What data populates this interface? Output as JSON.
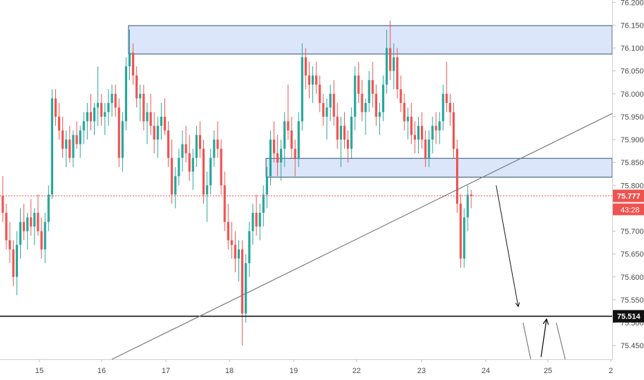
{
  "chart_data": {
    "type": "candlestick",
    "xlabels": [
      "15",
      "16",
      "17",
      "18",
      "19",
      "22",
      "23",
      "24",
      "25",
      "2"
    ],
    "yticks": [
      "76.200",
      "76.150",
      "76.100",
      "76.050",
      "76.000",
      "75.950",
      "75.900",
      "75.850",
      "75.800",
      "75.750",
      "75.700",
      "75.650",
      "75.600",
      "75.550",
      "75.500",
      "75.450"
    ],
    "ylim": [
      75.42,
      76.205
    ],
    "last_price": "75.777",
    "countdown": "43:28",
    "support_level": "75.514",
    "zones": [
      {
        "low": 76.087,
        "high": 76.149
      },
      {
        "low": 75.818,
        "high": 75.859
      }
    ],
    "trendline": {
      "from": [
        "16",
        75.42
      ],
      "to": [
        "26",
        75.957
      ]
    },
    "support_line_value": 75.514,
    "projection_arrows": [
      {
        "from": [
          "24",
          75.8
        ],
        "to": [
          "24.5",
          75.535
        ]
      },
      {
        "from": [
          "24.9",
          75.425
        ],
        "to": [
          "25",
          75.508
        ]
      }
    ],
    "candles": [
      [
        75.777,
        75.82,
        75.72,
        75.74
      ],
      [
        75.74,
        75.76,
        75.66,
        75.68
      ],
      [
        75.68,
        75.72,
        75.63,
        75.66
      ],
      [
        75.66,
        75.68,
        75.58,
        75.6
      ],
      [
        75.6,
        75.7,
        75.56,
        75.67
      ],
      [
        75.67,
        75.75,
        75.64,
        75.72
      ],
      [
        75.72,
        75.76,
        75.68,
        75.7
      ],
      [
        75.7,
        75.74,
        75.66,
        75.73
      ],
      [
        75.73,
        75.77,
        75.69,
        75.71
      ],
      [
        75.71,
        75.75,
        75.67,
        75.74
      ],
      [
        75.74,
        75.78,
        75.69,
        75.7
      ],
      [
        75.7,
        75.73,
        75.64,
        75.66
      ],
      [
        75.66,
        75.74,
        75.63,
        75.72
      ],
      [
        75.72,
        75.8,
        75.7,
        75.78
      ],
      [
        75.78,
        76.01,
        75.77,
        75.99
      ],
      [
        75.99,
        76.01,
        75.93,
        75.95
      ],
      [
        75.95,
        75.98,
        75.9,
        75.92
      ],
      [
        75.92,
        75.95,
        75.86,
        75.88
      ],
      [
        75.88,
        75.92,
        75.84,
        75.9
      ],
      [
        75.9,
        75.93,
        75.85,
        75.86
      ],
      [
        75.86,
        75.92,
        75.84,
        75.91
      ],
      [
        75.91,
        75.94,
        75.88,
        75.89
      ],
      [
        75.89,
        75.93,
        75.86,
        75.92
      ],
      [
        75.92,
        75.96,
        75.89,
        75.94
      ],
      [
        75.94,
        75.98,
        75.9,
        75.96
      ],
      [
        75.96,
        76.0,
        75.92,
        75.94
      ],
      [
        75.94,
        75.98,
        75.91,
        75.97
      ],
      [
        75.97,
        76.06,
        75.93,
        75.98
      ],
      [
        75.98,
        76.0,
        75.93,
        75.95
      ],
      [
        75.95,
        75.98,
        75.91,
        75.96
      ],
      [
        75.96,
        76.01,
        75.93,
        75.98
      ],
      [
        75.98,
        76.02,
        75.95,
        76.0
      ],
      [
        76.0,
        76.02,
        75.95,
        75.97
      ],
      [
        75.97,
        75.99,
        75.84,
        75.86
      ],
      [
        75.86,
        75.96,
        75.83,
        75.94
      ],
      [
        75.94,
        76.08,
        75.92,
        76.06
      ],
      [
        76.06,
        76.14,
        76.03,
        76.09
      ],
      [
        76.09,
        76.11,
        76.02,
        76.04
      ],
      [
        76.04,
        76.06,
        75.97,
        75.99
      ],
      [
        75.99,
        76.02,
        75.94,
        76.0
      ],
      [
        76.0,
        76.02,
        75.92,
        75.94
      ],
      [
        75.94,
        75.98,
        75.89,
        75.96
      ],
      [
        75.96,
        76.0,
        75.91,
        75.93
      ],
      [
        75.93,
        75.96,
        75.87,
        75.9
      ],
      [
        75.9,
        75.95,
        75.86,
        75.93
      ],
      [
        75.93,
        75.98,
        75.9,
        75.95
      ],
      [
        75.95,
        75.99,
        75.91,
        75.92
      ],
      [
        75.92,
        75.94,
        75.84,
        75.86
      ],
      [
        75.86,
        75.9,
        75.76,
        75.78
      ],
      [
        75.78,
        75.84,
        75.75,
        75.82
      ],
      [
        75.82,
        75.88,
        75.8,
        75.86
      ],
      [
        75.86,
        75.92,
        75.83,
        75.89
      ],
      [
        75.89,
        75.93,
        75.85,
        75.87
      ],
      [
        75.87,
        75.91,
        75.81,
        75.83
      ],
      [
        75.83,
        75.88,
        75.79,
        75.86
      ],
      [
        75.86,
        75.93,
        75.84,
        75.91
      ],
      [
        75.91,
        75.94,
        75.86,
        75.88
      ],
      [
        75.88,
        75.9,
        75.76,
        75.78
      ],
      [
        75.78,
        75.83,
        75.72,
        75.8
      ],
      [
        75.8,
        75.88,
        75.78,
        75.86
      ],
      [
        75.86,
        75.92,
        75.84,
        75.9
      ],
      [
        75.9,
        75.94,
        75.86,
        75.88
      ],
      [
        75.88,
        75.9,
        75.78,
        75.8
      ],
      [
        75.8,
        75.83,
        75.7,
        75.72
      ],
      [
        75.72,
        75.76,
        75.66,
        75.68
      ],
      [
        75.68,
        75.72,
        75.64,
        75.67
      ],
      [
        75.67,
        75.7,
        75.61,
        75.64
      ],
      [
        75.64,
        75.68,
        75.59,
        75.66
      ],
      [
        75.66,
        75.68,
        75.45,
        75.52
      ],
      [
        75.52,
        75.65,
        75.5,
        75.63
      ],
      [
        75.63,
        75.72,
        75.6,
        75.7
      ],
      [
        75.7,
        75.76,
        75.67,
        75.74
      ],
      [
        75.74,
        75.78,
        75.69,
        75.71
      ],
      [
        75.71,
        75.76,
        75.68,
        75.74
      ],
      [
        75.74,
        75.8,
        75.71,
        75.78
      ],
      [
        75.78,
        75.84,
        75.75,
        75.82
      ],
      [
        75.82,
        75.92,
        75.8,
        75.9
      ],
      [
        75.9,
        75.94,
        75.85,
        75.87
      ],
      [
        75.87,
        75.91,
        75.82,
        75.85
      ],
      [
        75.85,
        75.9,
        75.81,
        75.88
      ],
      [
        75.88,
        75.96,
        75.84,
        75.94
      ],
      [
        75.94,
        76.02,
        75.9,
        75.92
      ],
      [
        75.92,
        75.95,
        75.86,
        75.88
      ],
      [
        75.88,
        75.9,
        75.82,
        75.86
      ],
      [
        75.86,
        75.96,
        75.84,
        75.94
      ],
      [
        75.94,
        76.11,
        75.92,
        76.08
      ],
      [
        76.08,
        76.1,
        76.01,
        76.04
      ],
      [
        76.04,
        76.07,
        75.99,
        76.02
      ],
      [
        76.02,
        76.06,
        75.98,
        76.04
      ],
      [
        76.04,
        76.07,
        76.0,
        76.02
      ],
      [
        76.02,
        76.04,
        75.96,
        75.98
      ],
      [
        75.98,
        76.0,
        75.93,
        75.95
      ],
      [
        75.95,
        75.99,
        75.9,
        75.97
      ],
      [
        75.97,
        76.02,
        75.94,
        76.0
      ],
      [
        76.0,
        76.03,
        75.93,
        75.95
      ],
      [
        75.95,
        75.98,
        75.88,
        75.9
      ],
      [
        75.9,
        75.95,
        75.84,
        75.93
      ],
      [
        75.93,
        75.96,
        75.88,
        75.9
      ],
      [
        75.9,
        75.92,
        75.85,
        75.88
      ],
      [
        75.88,
        75.97,
        75.86,
        75.95
      ],
      [
        75.95,
        76.06,
        75.92,
        76.04
      ],
      [
        76.04,
        76.07,
        75.98,
        76.0
      ],
      [
        76.0,
        76.03,
        75.94,
        75.96
      ],
      [
        75.96,
        75.99,
        75.91,
        75.98
      ],
      [
        75.98,
        76.05,
        75.96,
        76.03
      ],
      [
        76.03,
        76.07,
        75.97,
        76.0
      ],
      [
        76.0,
        76.02,
        75.93,
        75.95
      ],
      [
        75.95,
        75.98,
        75.91,
        75.96
      ],
      [
        75.96,
        76.04,
        75.94,
        76.02
      ],
      [
        76.02,
        76.14,
        76.0,
        76.1
      ],
      [
        76.1,
        76.16,
        76.03,
        76.05
      ],
      [
        76.05,
        76.11,
        76.01,
        76.08
      ],
      [
        76.08,
        76.1,
        75.99,
        76.01
      ],
      [
        76.01,
        76.04,
        75.96,
        75.98
      ],
      [
        75.98,
        76.0,
        75.92,
        75.94
      ],
      [
        75.94,
        75.97,
        75.9,
        75.95
      ],
      [
        75.95,
        75.98,
        75.89,
        75.91
      ],
      [
        75.91,
        75.94,
        75.87,
        75.9
      ],
      [
        75.9,
        75.95,
        75.87,
        75.93
      ],
      [
        75.93,
        75.96,
        75.88,
        75.9
      ],
      [
        75.9,
        75.92,
        75.84,
        75.86
      ],
      [
        75.86,
        75.92,
        75.84,
        75.9
      ],
      [
        75.9,
        75.95,
        75.87,
        75.93
      ],
      [
        75.93,
        75.96,
        75.89,
        75.92
      ],
      [
        75.92,
        75.96,
        75.89,
        75.94
      ],
      [
        75.94,
        76.02,
        75.92,
        76.0
      ],
      [
        76.0,
        76.07,
        75.96,
        75.98
      ],
      [
        75.98,
        76.0,
        75.93,
        75.96
      ],
      [
        75.96,
        75.98,
        75.86,
        75.88
      ],
      [
        75.88,
        75.9,
        75.74,
        75.76
      ],
      [
        75.76,
        75.78,
        75.62,
        75.64
      ],
      [
        75.64,
        75.75,
        75.62,
        75.73
      ],
      [
        75.73,
        75.8,
        75.7,
        75.78
      ],
      [
        75.78,
        75.79,
        75.75,
        75.777
      ]
    ]
  }
}
